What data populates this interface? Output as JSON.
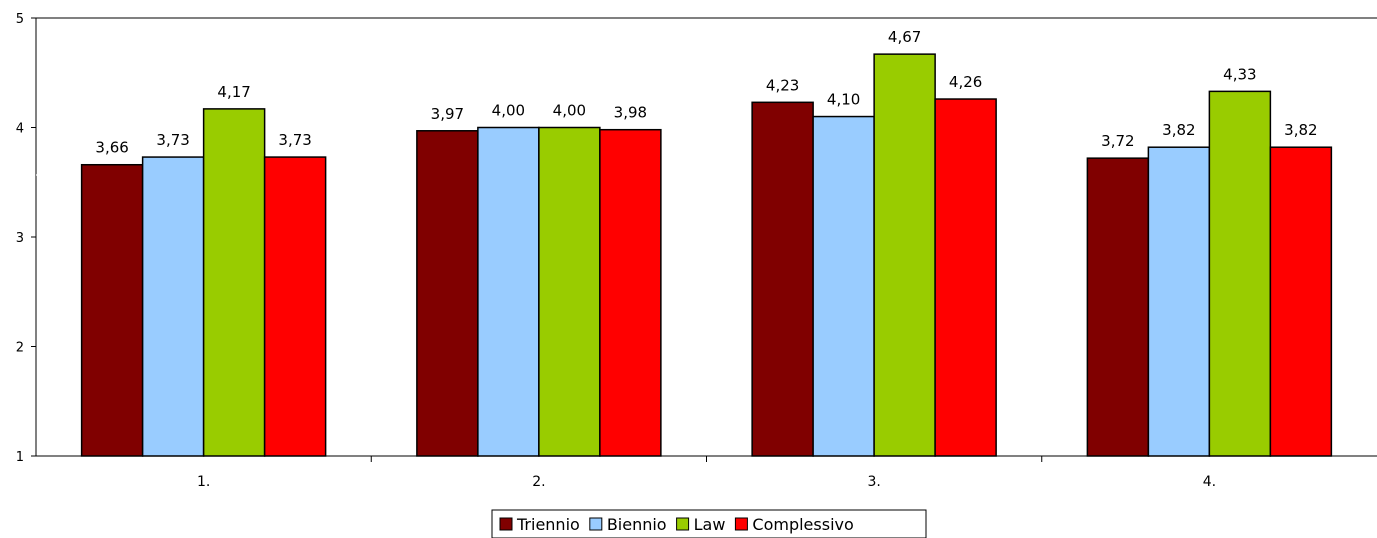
{
  "chart_data": {
    "type": "bar",
    "title": "",
    "xlabel": "",
    "ylabel": "",
    "ylim": [
      1,
      5
    ],
    "yticks": [
      "1",
      "2",
      "3",
      "4",
      "5"
    ],
    "categories": [
      "1.",
      "2.",
      "3.",
      "4."
    ],
    "series": [
      {
        "name": "Triennio",
        "color": "#800000",
        "values": [
          3.66,
          3.97,
          4.23,
          3.72
        ],
        "labels": [
          "3,66",
          "3,97",
          "4,23",
          "3,72"
        ]
      },
      {
        "name": "Biennio",
        "color": "#99ccff",
        "values": [
          3.73,
          4.0,
          4.1,
          3.82
        ],
        "labels": [
          "3,73",
          "4,00",
          "4,10",
          "3,82"
        ]
      },
      {
        "name": "Law",
        "color": "#99cc00",
        "values": [
          4.17,
          4.0,
          4.67,
          4.33
        ],
        "labels": [
          "4,17",
          "4,00",
          "4,67",
          "4,33"
        ]
      },
      {
        "name": "Complessivo",
        "color": "#ff0000",
        "values": [
          3.73,
          3.98,
          4.26,
          3.82
        ],
        "labels": [
          "3,73",
          "3,98",
          "4,26",
          "3,82"
        ]
      }
    ],
    "grid": false,
    "legend": "bottom-center"
  }
}
